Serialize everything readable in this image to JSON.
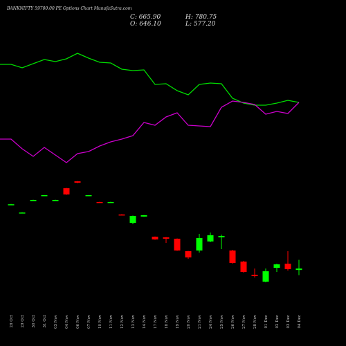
{
  "chart_data": {
    "type": "candlestick",
    "title": "BANKNIFTY 59700.00 PE Options Chart MunafaSutra.com",
    "info": [
      "C: 665.90",
      "O: 646.10",
      "H: 780.75",
      "L: 577.20"
    ],
    "categories": [
      "28 Oct",
      "29 Oct",
      "30 Oct",
      "31 Oct",
      "03 Nov",
      "04 Nov",
      "06 Nov",
      "07 Nov",
      "10 Nov",
      "11 Nov",
      "12 Nov",
      "13 Nov",
      "14 Nov",
      "17 Nov",
      "18 Nov",
      "19 Nov",
      "20 Nov",
      "21 Nov",
      "24 Nov",
      "25 Nov",
      "26 Nov",
      "27 Nov",
      "28 Nov",
      "01 Dec",
      "02 Dec",
      "03 Dec",
      "04 Dec"
    ],
    "open": [
      1520,
      1410,
      1577,
      1641,
      1577,
      1733,
      1825,
      1641,
      1550,
      1550,
      1384,
      1273,
      1356,
      1089,
      1080,
      1062,
      896,
      905,
      1025,
      1080,
      905,
      758,
      583,
      491,
      675,
      730,
      646.1
    ],
    "high": [
      1525,
      1414,
      1580,
      1644,
      1580,
      1738,
      1830,
      1644,
      1553,
      1553,
      1388,
      1370,
      1378,
      1092,
      1084,
      1066,
      900,
      1126,
      1144,
      1117,
      914,
      767,
      666,
      666,
      730,
      896,
      780.75
    ],
    "low": [
      1515,
      1406,
      1574,
      1638,
      1574,
      1645,
      1800,
      1638,
      1542,
      1546,
      1376,
      1255,
      1352,
      1048,
      1006,
      900,
      795,
      878,
      1016,
      924,
      730,
      611,
      546,
      482,
      620,
      638,
      577.2
    ],
    "close": [
      1520,
      1410,
      1577,
      1641,
      1577,
      1650,
      1807,
      1641,
      1545,
      1550,
      1380,
      1365,
      1374,
      1052,
      1062,
      905,
      813,
      1071,
      1108,
      1098,
      740,
      620,
      565,
      629,
      721,
      657,
      665.9
    ],
    "ylim": [
      400,
      2000
    ],
    "up_color": "#00ff00",
    "down_color": "#ff0000",
    "line_ylim": [
      0,
      300
    ],
    "lines": [
      {
        "color": "#00dd00",
        "values": [
          207,
          202,
          208,
          214,
          211,
          215,
          223,
          216,
          210,
          209,
          200,
          198,
          199,
          178,
          179,
          169,
          163,
          178,
          180,
          179,
          158,
          151,
          148,
          148,
          151,
          155,
          152
        ]
      },
      {
        "color": "#cc00cc",
        "values": [
          99,
          85,
          74,
          87,
          76,
          65,
          78,
          81,
          89,
          95,
          99,
          104,
          123,
          119,
          131,
          137,
          119,
          118,
          117,
          145,
          154,
          152,
          149,
          135,
          139,
          136,
          152
        ]
      }
    ]
  }
}
